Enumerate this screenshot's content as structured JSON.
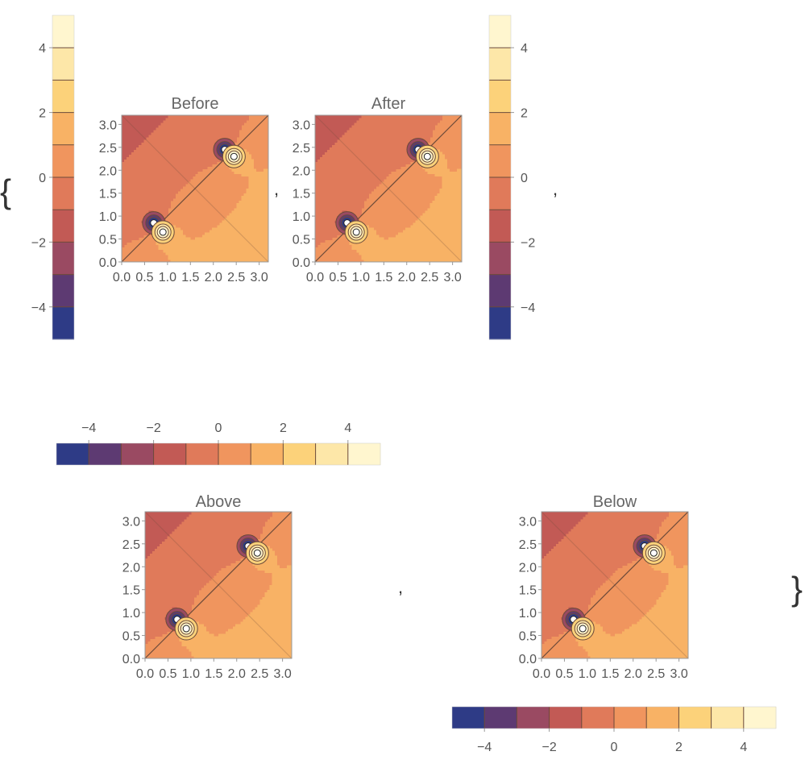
{
  "punctuation": {
    "open_brace": "{",
    "close_brace": "}",
    "comma": ","
  },
  "colors": {
    "band_colors": [
      "#2e3b86",
      "#5d3a72",
      "#9a4a62",
      "#c25a55",
      "#e07a5a",
      "#f0955e",
      "#f8b265",
      "#fcd27a",
      "#fde7a8",
      "#fff6cf"
    ],
    "contour_line": "#6b4a3a",
    "frame": "#999999"
  },
  "colorbar": {
    "levels": [
      -5,
      -4,
      -3,
      -2,
      -1,
      0,
      1,
      2,
      3,
      4,
      5
    ],
    "tick_labels": [
      "−4",
      "−2",
      "0",
      "2",
      "4"
    ],
    "tick_values": [
      -4,
      -2,
      0,
      2,
      4
    ]
  },
  "chart_data": [
    {
      "type": "contour",
      "title": "Before",
      "x_ticks": [
        "0.0",
        "0.5",
        "1.0",
        "1.5",
        "2.0",
        "2.5",
        "3.0"
      ],
      "y_ticks": [
        "0.0",
        "0.5",
        "1.0",
        "1.5",
        "2.0",
        "2.5",
        "3.0"
      ],
      "xlim": [
        0,
        3.2
      ],
      "ylim": [
        0,
        3.2
      ],
      "poles": [
        {
          "x": 0.7,
          "y": 0.85,
          "sign": "negative"
        },
        {
          "x": 0.9,
          "y": 0.65,
          "sign": "positive"
        },
        {
          "x": 2.25,
          "y": 2.45,
          "sign": "negative"
        },
        {
          "x": 2.45,
          "y": 2.3,
          "sign": "positive"
        }
      ],
      "legend": "left-vertical"
    },
    {
      "type": "contour",
      "title": "After",
      "x_ticks": [
        "0.0",
        "0.5",
        "1.0",
        "1.5",
        "2.0",
        "2.5",
        "3.0"
      ],
      "y_ticks": [
        "0.0",
        "0.5",
        "1.0",
        "1.5",
        "2.0",
        "2.5",
        "3.0"
      ],
      "xlim": [
        0,
        3.2
      ],
      "ylim": [
        0,
        3.2
      ],
      "poles": [
        {
          "x": 0.7,
          "y": 0.85,
          "sign": "negative"
        },
        {
          "x": 0.9,
          "y": 0.65,
          "sign": "positive"
        },
        {
          "x": 2.25,
          "y": 2.45,
          "sign": "negative"
        },
        {
          "x": 2.45,
          "y": 2.3,
          "sign": "positive"
        }
      ],
      "legend": "right-vertical"
    },
    {
      "type": "contour",
      "title": "Above",
      "x_ticks": [
        "0.0",
        "0.5",
        "1.0",
        "1.5",
        "2.0",
        "2.5",
        "3.0"
      ],
      "y_ticks": [
        "0.0",
        "0.5",
        "1.0",
        "1.5",
        "2.0",
        "2.5",
        "3.0"
      ],
      "xlim": [
        0,
        3.2
      ],
      "ylim": [
        0,
        3.2
      ],
      "poles": [
        {
          "x": 0.7,
          "y": 0.85,
          "sign": "negative"
        },
        {
          "x": 0.9,
          "y": 0.65,
          "sign": "positive"
        },
        {
          "x": 2.25,
          "y": 2.45,
          "sign": "negative"
        },
        {
          "x": 2.45,
          "y": 2.3,
          "sign": "positive"
        }
      ],
      "legend": "top-horizontal"
    },
    {
      "type": "contour",
      "title": "Below",
      "x_ticks": [
        "0.0",
        "0.5",
        "1.0",
        "1.5",
        "2.0",
        "2.5",
        "3.0"
      ],
      "y_ticks": [
        "0.0",
        "0.5",
        "1.0",
        "1.5",
        "2.0",
        "2.5",
        "3.0"
      ],
      "xlim": [
        0,
        3.2
      ],
      "ylim": [
        0,
        3.2
      ],
      "poles": [
        {
          "x": 0.7,
          "y": 0.85,
          "sign": "negative"
        },
        {
          "x": 0.9,
          "y": 0.65,
          "sign": "positive"
        },
        {
          "x": 2.25,
          "y": 2.45,
          "sign": "negative"
        },
        {
          "x": 2.45,
          "y": 2.3,
          "sign": "positive"
        }
      ],
      "legend": "bottom-horizontal"
    }
  ]
}
